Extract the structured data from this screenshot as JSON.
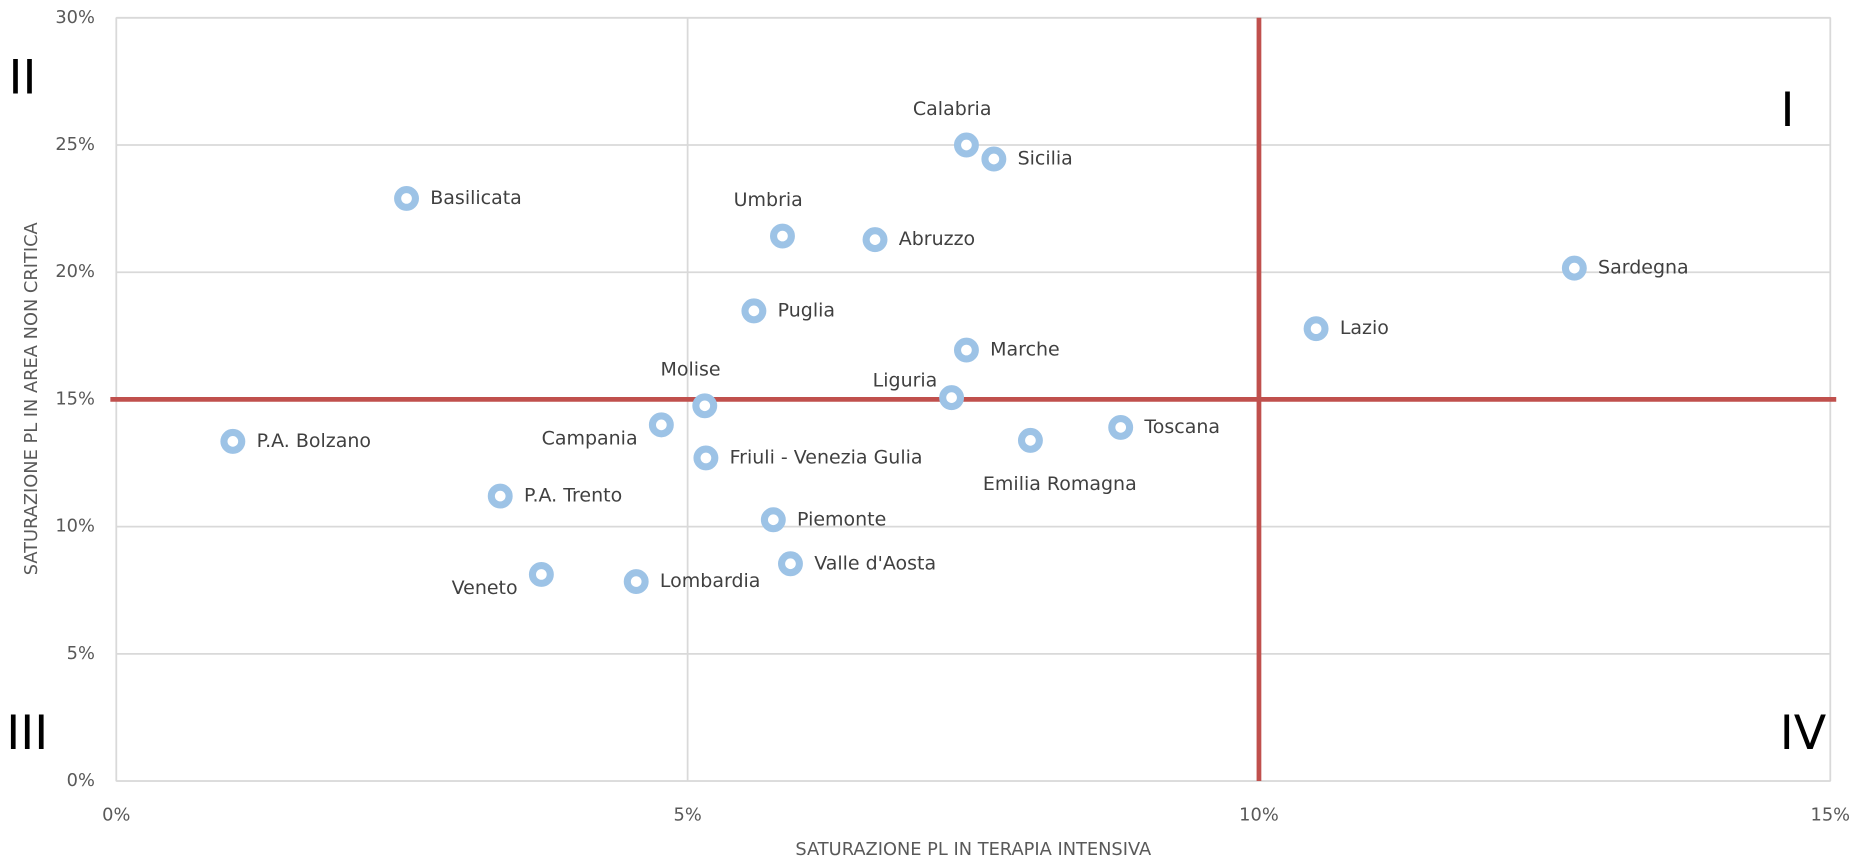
{
  "chart_data": {
    "type": "scatter",
    "x_label": "SATURAZIONE PL IN TERAPIA INTENSIVA",
    "y_label": "SATURAZIONE PL IN AREA NON CRITICA",
    "xlim": [
      0,
      15
    ],
    "ylim": [
      0,
      30
    ],
    "xticks": [
      {
        "value": 0,
        "label": "0%"
      },
      {
        "value": 5,
        "label": "5%"
      },
      {
        "value": 10,
        "label": "10%"
      },
      {
        "value": 15,
        "label": "15%"
      }
    ],
    "yticks": [
      {
        "value": 0,
        "label": "0%"
      },
      {
        "value": 5,
        "label": "5%"
      },
      {
        "value": 10,
        "label": "10%"
      },
      {
        "value": 15,
        "label": "15%"
      },
      {
        "value": 20,
        "label": "20%"
      },
      {
        "value": 25,
        "label": "25%"
      },
      {
        "value": 30,
        "label": "30%"
      }
    ],
    "grid": true,
    "reference_lines": {
      "x": 10,
      "y": 15,
      "color": "#c0504d"
    },
    "quadrant_labels": [
      "I",
      "II",
      "III",
      "IV"
    ],
    "series": [
      {
        "color": "#9dc3e6",
        "labels": [
          "Basilicata",
          "P.A. Bolzano",
          "P.A. Trento",
          "Veneto",
          "Lombardia",
          "Campania",
          "Molise",
          "Friuli - Venezia Gulia",
          "Puglia",
          "Umbria",
          "Piemonte",
          "Valle d'Aosta",
          "Abruzzo",
          "Calabria",
          "Sicilia",
          "Marche",
          "Liguria",
          "Emilia Romagna",
          "Toscana",
          "Lazio",
          "Sardegna"
        ],
        "x": [
          2.54,
          1.02,
          3.36,
          3.72,
          4.55,
          4.77,
          5.15,
          5.16,
          5.58,
          5.83,
          5.75,
          5.9,
          6.64,
          7.44,
          7.68,
          7.44,
          7.31,
          8.0,
          8.79,
          10.5,
          12.76
        ],
        "values": [
          22.9,
          13.35,
          11.2,
          8.12,
          7.84,
          14.0,
          14.75,
          12.7,
          18.48,
          21.42,
          10.27,
          8.54,
          21.28,
          25.0,
          24.45,
          16.94,
          15.07,
          13.39,
          13.9,
          17.78,
          20.16
        ]
      }
    ]
  }
}
